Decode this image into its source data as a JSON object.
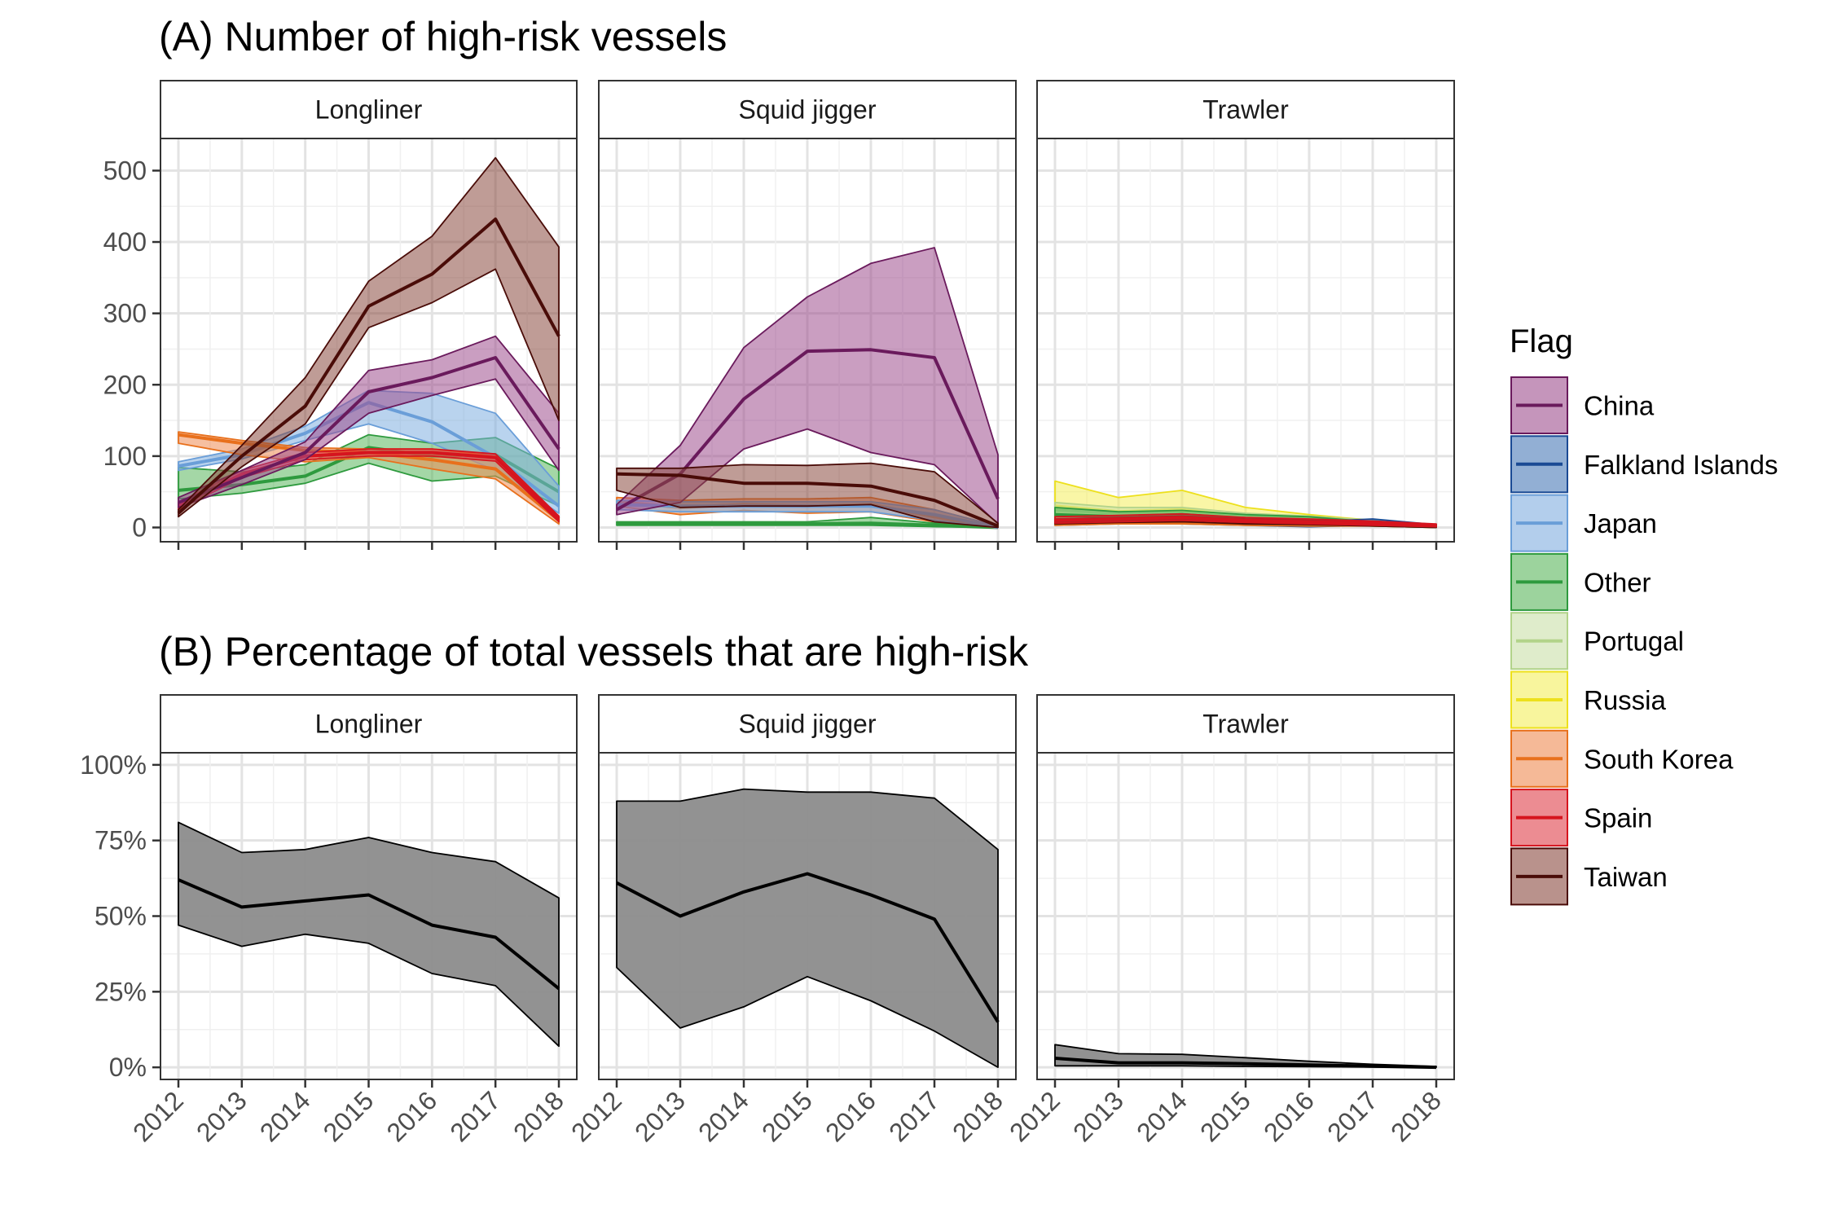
{
  "panel_titles": {
    "a": "(A) Number of high-risk vessels",
    "b": "(B) Percentage of total vessels that are high-risk"
  },
  "legend": {
    "title": "Flag",
    "entries": [
      {
        "label": "China",
        "fill": "#9e4f8e",
        "line": "#6a1a5c"
      },
      {
        "label": "Falkland Islands",
        "fill": "#4a7ab8",
        "line": "#1a4a94"
      },
      {
        "label": "Japan",
        "fill": "#80aee0",
        "line": "#6a9ed8"
      },
      {
        "label": "Other",
        "fill": "#5ab65c",
        "line": "#2e9a3e"
      },
      {
        "label": "Portugal",
        "fill": "#c9e0a8",
        "line": "#b2d38a"
      },
      {
        "label": "Russia",
        "fill": "#f4ef5c",
        "line": "#ede01c"
      },
      {
        "label": "South Korea",
        "fill": "#ee8a52",
        "line": "#e8701c"
      },
      {
        "label": "Spain",
        "fill": "#e0404a",
        "line": "#d6141e"
      },
      {
        "label": "Taiwan",
        "fill": "#8a4a40",
        "line": "#4a0c08"
      }
    ]
  },
  "chart_data": [
    {
      "type": "area",
      "title": "(A) Number of high-risk vessels",
      "xlabel": "",
      "ylabel": "",
      "x": [
        2012,
        2013,
        2014,
        2015,
        2016,
        2017,
        2018
      ],
      "ylim": [
        -20,
        545
      ],
      "y_ticks": [
        0,
        100,
        200,
        300,
        400,
        500
      ],
      "y_tick_labels": [
        "0",
        "100",
        "200",
        "300",
        "400",
        "500"
      ],
      "grid": true,
      "legend_position": "right",
      "facets": [
        {
          "label": "Longliner",
          "series": [
            {
              "name": "Other",
              "mean": [
                52,
                60,
                72,
                112,
                100,
                102,
                50
              ],
              "lower": [
                40,
                48,
                62,
                90,
                65,
                72,
                30
              ],
              "upper": [
                84,
                78,
                88,
                130,
                118,
                126,
                82
              ]
            },
            {
              "name": "Japan",
              "mean": [
                86,
                102,
                132,
                175,
                148,
                98,
                30
              ],
              "lower": [
                80,
                96,
                122,
                145,
                118,
                80,
                20
              ],
              "upper": [
                92,
                110,
                142,
                192,
                188,
                160,
                58
              ]
            },
            {
              "name": "South Korea",
              "mean": [
                130,
                118,
                108,
                105,
                95,
                82,
                10
              ],
              "lower": [
                118,
                102,
                92,
                98,
                82,
                68,
                5
              ],
              "upper": [
                134,
                122,
                112,
                110,
                110,
                100,
                15
              ]
            },
            {
              "name": "Spain",
              "mean": [
                30,
                75,
                100,
                105,
                105,
                98,
                12
              ],
              "lower": [
                25,
                70,
                95,
                100,
                100,
                93,
                8
              ],
              "upper": [
                35,
                80,
                105,
                110,
                110,
                103,
                16
              ]
            },
            {
              "name": "China",
              "mean": [
                35,
                70,
                105,
                190,
                210,
                238,
                110
              ],
              "lower": [
                28,
                60,
                95,
                160,
                185,
                208,
                80
              ],
              "upper": [
                42,
                80,
                120,
                220,
                235,
                268,
                160
              ]
            },
            {
              "name": "Taiwan",
              "mean": [
                20,
                100,
                170,
                310,
                355,
                432,
                268
              ],
              "lower": [
                15,
                85,
                145,
                280,
                315,
                362,
                150
              ],
              "upper": [
                25,
                115,
                210,
                345,
                408,
                518,
                393
              ]
            }
          ]
        },
        {
          "label": "Squid jigger",
          "series": [
            {
              "name": "Other",
              "mean": [
                5,
                5,
                5,
                5,
                6,
                3,
                0
              ],
              "lower": [
                3,
                3,
                3,
                3,
                3,
                1,
                0
              ],
              "upper": [
                8,
                8,
                8,
                8,
                14,
                6,
                1
              ]
            },
            {
              "name": "South Korea",
              "mean": [
                36,
                28,
                32,
                30,
                32,
                15,
                0
              ],
              "lower": [
                30,
                18,
                24,
                20,
                22,
                8,
                0
              ],
              "upper": [
                42,
                38,
                40,
                40,
                42,
                25,
                2
              ]
            },
            {
              "name": "Japan",
              "mean": [
                32,
                30,
                30,
                30,
                30,
                18,
                0
              ],
              "lower": [
                25,
                22,
                22,
                22,
                22,
                10,
                0
              ],
              "upper": [
                38,
                36,
                36,
                36,
                36,
                25,
                2
              ]
            },
            {
              "name": "China",
              "mean": [
                25,
                75,
                180,
                247,
                249,
                238,
                40
              ],
              "lower": [
                18,
                35,
                110,
                138,
                105,
                88,
                5
              ],
              "upper": [
                32,
                115,
                252,
                323,
                370,
                392,
                102
              ]
            },
            {
              "name": "Taiwan",
              "mean": [
                75,
                73,
                62,
                62,
                58,
                38,
                2
              ],
              "lower": [
                52,
                28,
                30,
                30,
                32,
                8,
                0
              ],
              "upper": [
                83,
                83,
                88,
                87,
                90,
                78,
                6
              ]
            }
          ]
        },
        {
          "label": "Trawler",
          "series": [
            {
              "name": "Russia",
              "mean": [
                30,
                22,
                25,
                15,
                10,
                5,
                2
              ],
              "lower": [
                10,
                10,
                10,
                5,
                5,
                2,
                0
              ],
              "upper": [
                65,
                42,
                52,
                28,
                18,
                10,
                4
              ]
            },
            {
              "name": "Portugal",
              "mean": [
                25,
                20,
                20,
                15,
                12,
                6,
                2
              ],
              "lower": [
                15,
                12,
                12,
                8,
                6,
                3,
                0
              ],
              "upper": [
                35,
                28,
                28,
                20,
                16,
                10,
                4
              ]
            },
            {
              "name": "Other",
              "mean": [
                18,
                15,
                18,
                12,
                10,
                5,
                2
              ],
              "lower": [
                10,
                8,
                10,
                6,
                5,
                2,
                0
              ],
              "upper": [
                28,
                22,
                24,
                18,
                15,
                8,
                4
              ]
            },
            {
              "name": "Falkland Islands",
              "mean": [
                5,
                8,
                8,
                6,
                4,
                8,
                2
              ],
              "lower": [
                3,
                5,
                5,
                3,
                1,
                3,
                0
              ],
              "upper": [
                8,
                12,
                12,
                10,
                8,
                12,
                4
              ]
            },
            {
              "name": "South Korea",
              "mean": [
                6,
                8,
                8,
                6,
                5,
                5,
                2
              ],
              "lower": [
                3,
                5,
                5,
                3,
                2,
                2,
                0
              ],
              "upper": [
                10,
                12,
                12,
                10,
                8,
                8,
                4
              ]
            },
            {
              "name": "Taiwan",
              "mean": [
                8,
                10,
                12,
                8,
                7,
                5,
                2
              ],
              "lower": [
                5,
                7,
                8,
                5,
                4,
                2,
                0
              ],
              "upper": [
                12,
                14,
                16,
                12,
                10,
                8,
                4
              ]
            },
            {
              "name": "Spain",
              "mean": [
                10,
                12,
                14,
                10,
                8,
                6,
                3
              ],
              "lower": [
                6,
                8,
                10,
                7,
                5,
                3,
                1
              ],
              "upper": [
                15,
                17,
                19,
                14,
                12,
                9,
                5
              ]
            }
          ]
        }
      ]
    },
    {
      "type": "area",
      "title": "(B) Percentage of total vessels that are high-risk",
      "xlabel": "",
      "ylabel": "",
      "x": [
        2012,
        2013,
        2014,
        2015,
        2016,
        2017,
        2018
      ],
      "x_tick_labels": [
        "2012",
        "2013",
        "2014",
        "2015",
        "2016",
        "2017",
        "2018"
      ],
      "ylim": [
        -4,
        104
      ],
      "y_ticks": [
        0,
        25,
        50,
        75,
        100
      ],
      "y_tick_labels": [
        "0%",
        "25%",
        "50%",
        "75%",
        "100%"
      ],
      "grid": true,
      "facets": [
        {
          "label": "Longliner",
          "series": [
            {
              "mean": [
                62,
                53,
                55,
                57,
                47,
                43,
                26
              ],
              "lower": [
                47,
                40,
                44,
                41,
                31,
                27,
                7
              ],
              "upper": [
                81,
                71,
                72,
                76,
                71,
                68,
                56
              ],
              "fill": "#8c8c8c",
              "line": "#000000"
            }
          ]
        },
        {
          "label": "Squid jigger",
          "series": [
            {
              "mean": [
                61,
                50,
                58,
                64,
                57,
                49,
                15
              ],
              "lower": [
                33,
                13,
                20,
                30,
                22,
                12,
                0
              ],
              "upper": [
                88,
                88,
                92,
                91,
                91,
                89,
                72
              ],
              "fill": "#8c8c8c",
              "line": "#000000"
            }
          ]
        },
        {
          "label": "Trawler",
          "series": [
            {
              "mean": [
                3,
                1.5,
                1.5,
                1.2,
                0.8,
                0.4,
                0
              ],
              "lower": [
                0.5,
                0.5,
                0.5,
                0.3,
                0.2,
                0.1,
                0
              ],
              "upper": [
                7.5,
                4.5,
                4.3,
                3.2,
                2,
                1,
                0.3
              ],
              "fill": "#8c8c8c",
              "line": "#000000"
            }
          ]
        }
      ]
    }
  ]
}
